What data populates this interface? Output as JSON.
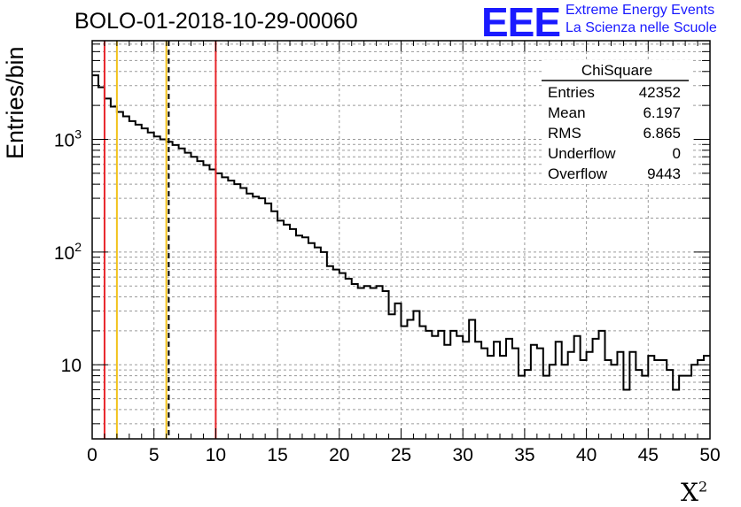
{
  "title": "BOLO-01-2018-10-29-00060",
  "logo": {
    "mark": "EEE",
    "line1": "Extreme Energy Events",
    "line2": "La Scienza nelle Scuole",
    "color": "#1a1aff"
  },
  "stats": {
    "name": "ChiSquare",
    "rows": [
      {
        "label": "Entries",
        "value": "42352"
      },
      {
        "label": "Mean",
        "value": "6.197"
      },
      {
        "label": "RMS",
        "value": "6.865"
      },
      {
        "label": "Underflow",
        "value": "0"
      },
      {
        "label": "Overflow",
        "value": "9443"
      }
    ]
  },
  "chart_data": {
    "type": "histogram",
    "xlabel": "X",
    "xlabel_sup": "2",
    "ylabel": "Entries/bin",
    "xlim": [
      0,
      50
    ],
    "ylim": [
      2.2,
      7500
    ],
    "yscale": "log",
    "grid": true,
    "bin_width": 0.5,
    "xticks": [
      0,
      5,
      10,
      15,
      20,
      25,
      30,
      35,
      40,
      45,
      50
    ],
    "ytick_labels": [
      {
        "value": 10,
        "base": "10",
        "exp": ""
      },
      {
        "value": 100,
        "base": "10",
        "exp": "2"
      },
      {
        "value": 1000,
        "base": "10",
        "exp": "3"
      }
    ],
    "values": [
      3700,
      2900,
      2300,
      1950,
      1750,
      1600,
      1450,
      1350,
      1250,
      1150,
      1060,
      1000,
      950,
      890,
      830,
      760,
      700,
      640,
      590,
      540,
      500,
      460,
      430,
      400,
      370,
      330,
      310,
      300,
      270,
      230,
      190,
      175,
      160,
      140,
      135,
      120,
      110,
      100,
      75,
      70,
      65,
      58,
      52,
      48,
      50,
      48,
      50,
      45,
      28,
      35,
      22,
      25,
      30,
      22,
      20,
      18,
      20,
      15,
      20,
      18,
      16,
      25,
      16,
      14,
      12,
      16,
      12,
      17,
      14,
      8,
      9,
      15,
      14,
      8,
      10,
      16,
      10,
      13,
      18,
      11,
      13,
      17,
      20,
      11,
      10,
      13,
      6,
      13,
      9,
      8,
      12,
      11,
      11,
      9,
      6,
      8,
      8,
      10,
      11,
      12,
      10
    ],
    "vertical_lines": [
      {
        "x": 1.0,
        "color": "#e8262b",
        "style": "solid"
      },
      {
        "x": 2.0,
        "color": "#f2c21b",
        "style": "solid"
      },
      {
        "x": 6.0,
        "color": "#f2c21b",
        "style": "solid"
      },
      {
        "x": 6.197,
        "color": "#000000",
        "style": "dashed"
      },
      {
        "x": 10.0,
        "color": "#e8262b",
        "style": "solid"
      }
    ]
  }
}
